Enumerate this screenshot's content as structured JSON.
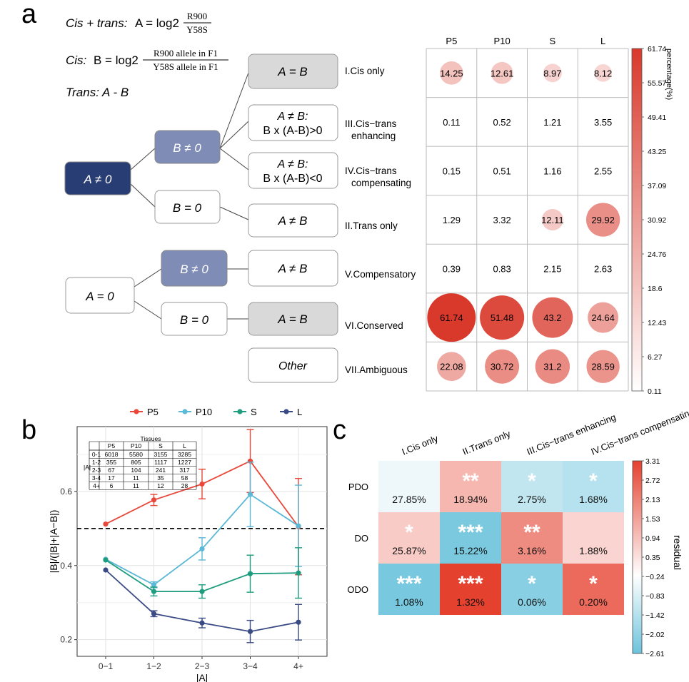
{
  "panel_labels": {
    "a": "a",
    "b": "b",
    "c": "c"
  },
  "panel_a": {
    "formulas": {
      "f1_label": "Cis + trans:",
      "f1_eq": "A = log2",
      "f1_num": "R900",
      "f1_den": "Y58S",
      "f2_label": "Cis:",
      "f2_eq": "B = log2",
      "f2_num": "R900 allele in F1",
      "f2_den": "Y58S allele in F1",
      "f3": "Trans:  A - B"
    },
    "tree_nodes": {
      "a_neq0": "A ≠ 0",
      "b_neq0_top": "B ≠ 0",
      "b_eq0_top": "B = 0",
      "a_eq0": "A = 0",
      "b_neq0_bottom": "B ≠ 0",
      "b_eq0_bottom": "B = 0",
      "leaf_cis": "A = B",
      "leaf_enh_1": "A ≠ B:",
      "leaf_enh_2": "B x (A-B)>0",
      "leaf_comp_1": "A ≠ B:",
      "leaf_comp_2": "B x (A-B)<0",
      "leaf_trans": "A ≠ B",
      "leaf_compensatory": "A ≠ B",
      "leaf_conserved": "A = B",
      "leaf_other": "Other"
    },
    "categories": [
      "I.Cis only",
      "III.Cis−trans enhancing",
      "IV.Cis−trans compensating",
      "II.Trans only",
      "V.Compensatory",
      "VI.Conserved",
      "VII.Ambiguous"
    ]
  },
  "chart_data": [
    {
      "type": "heatmap",
      "panel": "a",
      "columns": [
        "P5",
        "P10",
        "S",
        "L"
      ],
      "rows": [
        "I.Cis only",
        "III.Cis−trans enhancing",
        "IV.Cis−trans compensating",
        "II.Trans only",
        "V.Compensatory",
        "VI.Conserved",
        "VII.Ambiguous"
      ],
      "values": [
        [
          14.25,
          12.61,
          8.97,
          8.12
        ],
        [
          0.11,
          0.52,
          1.21,
          3.55
        ],
        [
          0.15,
          0.51,
          1.16,
          2.55
        ],
        [
          1.29,
          3.32,
          12.11,
          29.92
        ],
        [
          0.39,
          0.83,
          2.15,
          2.63
        ],
        [
          61.74,
          51.48,
          43.2,
          24.64
        ],
        [
          22.08,
          30.72,
          31.2,
          28.59
        ]
      ],
      "circles_shown": [
        [
          true,
          true,
          true,
          true
        ],
        [
          false,
          false,
          false,
          false
        ],
        [
          false,
          false,
          false,
          false
        ],
        [
          false,
          false,
          true,
          true
        ],
        [
          false,
          false,
          false,
          false
        ],
        [
          true,
          true,
          true,
          true
        ],
        [
          true,
          true,
          true,
          true
        ]
      ],
      "legend_title": "percentage(%)",
      "legend_ticks": [
        "61.74",
        "55.57",
        "49.41",
        "43.25",
        "37.09",
        "30.92",
        "24.76",
        "18.6",
        "12.43",
        "6.27",
        "0.11"
      ],
      "range": [
        0.11,
        61.74
      ],
      "colors": {
        "low": "#ffffff",
        "high": "#d9392b"
      }
    },
    {
      "type": "line",
      "panel": "b",
      "categories": [
        "0−1",
        "1−2",
        "2−3",
        "3−4",
        "4+"
      ],
      "series": [
        {
          "name": "P5",
          "color": "#e8473a",
          "values": [
            0.512,
            0.577,
            0.62,
            0.682,
            0.505
          ],
          "err": [
            0.003,
            0.015,
            0.04,
            0.085,
            0.13
          ]
        },
        {
          "name": "P10",
          "color": "#5bb8d6",
          "values": [
            0.417,
            0.348,
            0.445,
            0.592,
            0.507
          ],
          "err": [
            0.003,
            0.008,
            0.03,
            0.087,
            0.11
          ]
        },
        {
          "name": "S",
          "color": "#1d9c7e",
          "values": [
            0.415,
            0.33,
            0.33,
            0.378,
            0.38
          ],
          "err": [
            0.003,
            0.012,
            0.018,
            0.05,
            0.068
          ]
        },
        {
          "name": "L",
          "color": "#3a4a84",
          "values": [
            0.388,
            0.27,
            0.245,
            0.222,
            0.247
          ],
          "err": [
            0.003,
            0.008,
            0.013,
            0.03,
            0.048
          ]
        }
      ],
      "xlabel": "|A|",
      "ylabel": "|B|/(|B|+|A−B|)",
      "ylim": [
        0.155,
        0.775
      ],
      "yticks": [
        0.2,
        0.4,
        0.6
      ],
      "reference_line": 0.5,
      "grid": true,
      "legend_position": "top",
      "inset_table": {
        "title": "Tissues",
        "row_header": "|A|",
        "columns": [
          "P5",
          "P10",
          "S",
          "L"
        ],
        "rows": [
          {
            "label": "0-1",
            "values": [
              "6018",
              "5580",
              "3155",
              "3285"
            ]
          },
          {
            "label": "1-2",
            "values": [
              "355",
              "805",
              "1117",
              "1227"
            ]
          },
          {
            "label": "2-3",
            "values": [
              "67",
              "104",
              "241",
              "317"
            ]
          },
          {
            "label": "3-4",
            "values": [
              "17",
              "11",
              "35",
              "58"
            ]
          },
          {
            "label": "4+",
            "values": [
              "6",
              "11",
              "12",
              "28"
            ]
          }
        ]
      }
    },
    {
      "type": "heatmap",
      "panel": "c",
      "columns": [
        "I.Cis only",
        "II.Trans only",
        "III.Cis−trans enhancing",
        "IV.Cis−trans compensating"
      ],
      "rows": [
        "PDO",
        "DO",
        "ODO"
      ],
      "percent_labels": [
        [
          "27.85%",
          "18.94%",
          "2.75%",
          "1.68%"
        ],
        [
          "25.87%",
          "15.22%",
          "3.16%",
          "1.88%"
        ],
        [
          "1.08%",
          "1.32%",
          "0.06%",
          "0.20%"
        ]
      ],
      "stars": [
        [
          "",
          "**",
          "*",
          "*"
        ],
        [
          "*",
          "***",
          "**",
          ""
        ],
        [
          "***",
          "***",
          "*",
          "*"
        ]
      ],
      "residuals": [
        [
          -0.3,
          1.25,
          -1.1,
          -1.3
        ],
        [
          0.9,
          -2.35,
          2.0,
          0.75
        ],
        [
          -2.4,
          3.31,
          -2.1,
          2.6
        ]
      ],
      "legend_title": "residual",
      "legend_ticks": [
        "3.31",
        "2.72",
        "2.13",
        "1.53",
        "0.94",
        "0.35",
        "−0.24",
        "−0.83",
        "−1.42",
        "−2.02",
        "−2.61"
      ],
      "range": [
        -2.61,
        3.31
      ],
      "colors": {
        "low": "#6cc3dc",
        "mid": "#ffffff",
        "high": "#e5412f"
      }
    }
  ]
}
